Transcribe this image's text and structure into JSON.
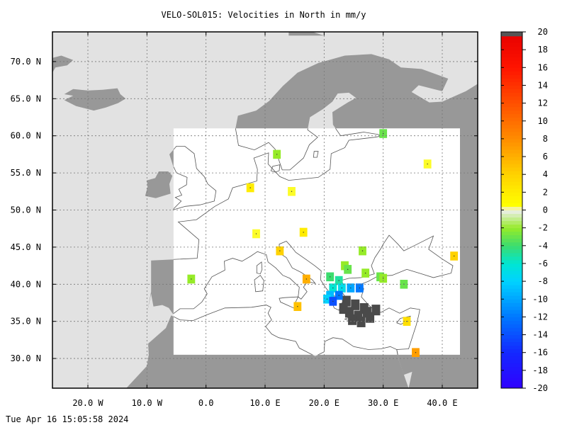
{
  "title": "VELO-SOL015: Velocities in North in mm/y",
  "footer_timestamp": "Tue Apr 16 15:05:58 2024",
  "colors": {
    "ocean": "#e2e2e2",
    "land": "#989898",
    "data_region": "#ffffff",
    "coast_line": "#555555",
    "grid": "#777777"
  },
  "chart_data": {
    "type": "heatmap",
    "title": "VELO-SOL015: Velocities in North in mm/y",
    "xlabel": "",
    "ylabel": "",
    "xlim": [
      -26,
      46
    ],
    "ylim": [
      26,
      74
    ],
    "grid": true,
    "x_ticks": [
      {
        "value": -20,
        "label": "20.0 W"
      },
      {
        "value": -10,
        "label": "10.0 W"
      },
      {
        "value": 0,
        "label": "0.0"
      },
      {
        "value": 10,
        "label": "10.0 E"
      },
      {
        "value": 20,
        "label": "20.0 E"
      },
      {
        "value": 30,
        "label": "30.0 E"
      },
      {
        "value": 40,
        "label": "40.0 E"
      }
    ],
    "y_ticks": [
      {
        "value": 30,
        "label": "30.0 N"
      },
      {
        "value": 35,
        "label": "35.0 N"
      },
      {
        "value": 40,
        "label": "40.0 N"
      },
      {
        "value": 45,
        "label": "45.0 N"
      },
      {
        "value": 50,
        "label": "50.0 N"
      },
      {
        "value": 55,
        "label": "55.0 N"
      },
      {
        "value": 60,
        "label": "60.0 N"
      },
      {
        "value": 65,
        "label": "65.0 N"
      },
      {
        "value": 70,
        "label": "70.0 N"
      }
    ],
    "data_region": {
      "lon": [
        -5.5,
        43
      ],
      "lat": [
        30.5,
        61
      ]
    },
    "colorbar": {
      "min": -20,
      "max": 20,
      "ticks": [
        20,
        18,
        16,
        14,
        12,
        10,
        8,
        6,
        4,
        2,
        0,
        -2,
        -4,
        -6,
        -8,
        -10,
        -12,
        -14,
        -16,
        -18,
        -20
      ]
    },
    "cells": [
      {
        "lon": 30,
        "lat": 60.3,
        "value": -3
      },
      {
        "lon": 12,
        "lat": 57.5,
        "value": -2
      },
      {
        "lon": 37.5,
        "lat": 56.2,
        "value": 0.5
      },
      {
        "lon": 7.5,
        "lat": 53,
        "value": 2
      },
      {
        "lon": 14.5,
        "lat": 52.5,
        "value": 0.5
      },
      {
        "lon": 16.5,
        "lat": 47,
        "value": 2
      },
      {
        "lon": 8.5,
        "lat": 46.8,
        "value": 0.5
      },
      {
        "lon": 12.5,
        "lat": 44.5,
        "value": 4
      },
      {
        "lon": 26.5,
        "lat": 44.5,
        "value": -2
      },
      {
        "lon": 42,
        "lat": 43.8,
        "value": 4
      },
      {
        "lon": 23.5,
        "lat": 42.5,
        "value": -2
      },
      {
        "lon": 24,
        "lat": 42,
        "value": -3
      },
      {
        "lon": 27,
        "lat": 41.5,
        "value": -2
      },
      {
        "lon": 29.5,
        "lat": 41,
        "value": -3
      },
      {
        "lon": 30,
        "lat": 40.8,
        "value": -2
      },
      {
        "lon": 17,
        "lat": 40.7,
        "value": 6
      },
      {
        "lon": -2.5,
        "lat": 40.7,
        "value": -2
      },
      {
        "lon": 21,
        "lat": 41,
        "value": -4
      },
      {
        "lon": 22.5,
        "lat": 40.5,
        "value": -5
      },
      {
        "lon": 33.5,
        "lat": 40,
        "value": -3
      },
      {
        "lon": 21.5,
        "lat": 39.5,
        "value": -6
      },
      {
        "lon": 23,
        "lat": 39.5,
        "value": -7
      },
      {
        "lon": 24.5,
        "lat": 39.5,
        "value": -10
      },
      {
        "lon": 26,
        "lat": 39.5,
        "value": -12
      },
      {
        "lon": 21,
        "lat": 38.5,
        "value": -9
      },
      {
        "lon": 22.5,
        "lat": 38.5,
        "value": -12
      },
      {
        "lon": 20.5,
        "lat": 38,
        "value": -8
      },
      {
        "lon": 21.5,
        "lat": 37.7,
        "value": -14
      },
      {
        "lon": 15.5,
        "lat": 37,
        "value": 5
      },
      {
        "lon": 34,
        "lat": 35,
        "value": 3
      },
      {
        "lon": 35.5,
        "lat": 30.8,
        "value": 7
      }
    ],
    "dark_cells": [
      {
        "lon": 23.5,
        "lat": 38
      },
      {
        "lon": 25,
        "lat": 37.5
      },
      {
        "lon": 26.5,
        "lat": 37
      },
      {
        "lon": 24,
        "lat": 36.5
      },
      {
        "lon": 25.5,
        "lat": 36
      },
      {
        "lon": 27,
        "lat": 36.5
      },
      {
        "lon": 24.5,
        "lat": 35.5
      },
      {
        "lon": 26,
        "lat": 35.2
      },
      {
        "lon": 27.5,
        "lat": 35.8
      },
      {
        "lon": 28.5,
        "lat": 36.8
      },
      {
        "lon": 23,
        "lat": 37
      }
    ]
  }
}
